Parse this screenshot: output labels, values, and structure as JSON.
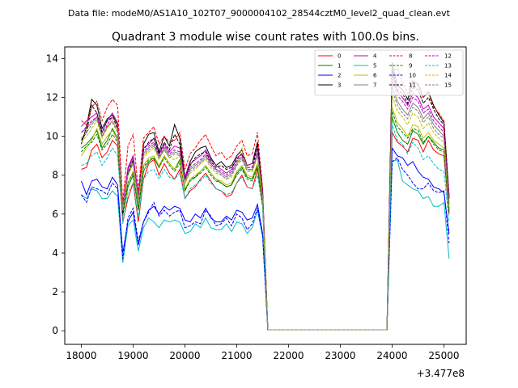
{
  "header": {
    "datafile": "Data file: modeM0/AS1A10_102T07_9000004102_28544cztM0_level2_quad_clean.evt"
  },
  "chart_data": {
    "type": "line",
    "title": "Quadrant 3 module wise count rates with 100.0s bins.",
    "xlabel": "",
    "ylabel": "",
    "x_offset_label": "+3.477e8",
    "xlim": [
      17680,
      25430
    ],
    "ylim": [
      -0.7,
      14.6
    ],
    "xticks": [
      18000,
      19000,
      20000,
      21000,
      22000,
      23000,
      24000,
      25000
    ],
    "yticks": [
      0,
      2,
      4,
      6,
      8,
      10,
      12,
      14
    ],
    "legend_position": "top-right",
    "grid": false,
    "x": [
      18000,
      18100,
      18200,
      18300,
      18400,
      18500,
      18600,
      18700,
      18800,
      18900,
      19000,
      19100,
      19200,
      19300,
      19400,
      19500,
      19600,
      19700,
      19800,
      19900,
      20000,
      20100,
      20200,
      20300,
      20400,
      20500,
      20600,
      20700,
      20800,
      20900,
      21000,
      21100,
      21200,
      21300,
      21400,
      21500,
      21600,
      23800,
      23900,
      24000,
      24100,
      24200,
      24300,
      24400,
      24500,
      24600,
      24700,
      24800,
      24900,
      25000,
      25100
    ],
    "series": [
      {
        "name": "0",
        "color": "#ff0000",
        "dash": "solid",
        "values": [
          8.3,
          8.4,
          9.3,
          9.6,
          8.9,
          9.2,
          9.8,
          9.5,
          5.6,
          6.8,
          7.6,
          5.6,
          7.8,
          8.6,
          8.8,
          8.0,
          8.6,
          8.1,
          7.8,
          8.3,
          6.8,
          7.2,
          7.4,
          7.8,
          8.1,
          7.7,
          7.3,
          7.2,
          6.9,
          7.0,
          7.6,
          8.0,
          7.4,
          7.3,
          8.3,
          6.5,
          0.05,
          0.05,
          0.05,
          10.2,
          9.7,
          9.5,
          9.2,
          9.9,
          9.8,
          9.2,
          9.8,
          9.3,
          9.1,
          9.0,
          6.0
        ]
      },
      {
        "name": "1",
        "color": "#008000",
        "dash": "solid",
        "values": [
          9.4,
          9.6,
          9.9,
          10.3,
          9.4,
          9.8,
          10.4,
          9.9,
          6.0,
          7.4,
          8.0,
          6.2,
          8.2,
          8.7,
          8.9,
          8.4,
          9.0,
          8.6,
          8.3,
          8.8,
          7.2,
          7.8,
          7.9,
          8.2,
          8.5,
          8.1,
          7.8,
          7.6,
          7.4,
          7.5,
          8.1,
          8.4,
          7.9,
          7.8,
          8.5,
          6.7,
          0.05,
          0.05,
          0.05,
          11.0,
          10.2,
          9.8,
          9.6,
          10.3,
          10.1,
          9.6,
          10.0,
          9.7,
          9.4,
          9.3,
          6.2
        ]
      },
      {
        "name": "2",
        "color": "#0000ff",
        "dash": "solid",
        "values": [
          7.7,
          7.0,
          7.7,
          7.8,
          7.4,
          7.3,
          7.9,
          7.5,
          4.0,
          5.6,
          6.1,
          4.4,
          5.6,
          6.2,
          6.4,
          6.0,
          6.4,
          6.2,
          6.4,
          6.3,
          5.7,
          5.6,
          6.0,
          5.8,
          6.3,
          5.8,
          5.6,
          5.6,
          5.9,
          5.7,
          6.2,
          6.1,
          5.7,
          5.8,
          6.5,
          5.0,
          0.05,
          0.05,
          0.05,
          9.4,
          9.0,
          8.9,
          8.5,
          8.7,
          8.2,
          7.9,
          7.8,
          7.4,
          7.3,
          7.1,
          5.0
        ]
      },
      {
        "name": "3",
        "color": "#000000",
        "dash": "solid",
        "values": [
          9.6,
          10.5,
          11.9,
          11.6,
          10.4,
          10.9,
          11.1,
          10.6,
          6.2,
          8.3,
          9.0,
          6.8,
          9.6,
          10.1,
          10.2,
          9.2,
          10.0,
          9.5,
          10.6,
          9.9,
          7.9,
          8.7,
          9.2,
          9.4,
          9.5,
          8.9,
          8.5,
          8.7,
          8.4,
          8.5,
          9.0,
          9.3,
          8.5,
          8.6,
          9.7,
          7.2,
          0.05,
          0.05,
          0.05,
          13.8,
          12.6,
          12.4,
          11.9,
          12.8,
          12.7,
          12.0,
          12.3,
          11.6,
          11.1,
          10.7,
          6.9
        ]
      },
      {
        "name": "4",
        "color": "#bf00bf",
        "dash": "solid",
        "values": [
          10.5,
          10.8,
          11.0,
          11.2,
          10.2,
          10.8,
          11.2,
          10.7,
          6.4,
          8.4,
          9.0,
          7.0,
          9.4,
          9.6,
          9.9,
          9.1,
          9.6,
          9.2,
          9.5,
          9.4,
          7.9,
          8.6,
          8.8,
          9.0,
          9.3,
          8.8,
          8.5,
          8.3,
          8.1,
          8.3,
          8.9,
          9.1,
          8.5,
          8.6,
          9.4,
          7.1,
          0.05,
          0.05,
          0.05,
          13.3,
          12.3,
          12.0,
          11.6,
          12.2,
          12.0,
          11.4,
          11.6,
          11.0,
          10.7,
          10.4,
          6.8
        ]
      },
      {
        "name": "5",
        "color": "#00bfbf",
        "dash": "solid",
        "values": [
          7.0,
          6.8,
          7.3,
          7.2,
          6.8,
          6.8,
          7.2,
          6.9,
          3.5,
          5.4,
          5.7,
          4.1,
          5.3,
          5.8,
          5.6,
          5.3,
          5.7,
          5.6,
          5.7,
          5.6,
          5.0,
          5.1,
          5.5,
          5.3,
          5.8,
          5.3,
          5.2,
          5.2,
          5.5,
          5.1,
          5.6,
          5.5,
          5.0,
          5.3,
          6.2,
          4.8,
          0.05,
          0.05,
          0.05,
          8.7,
          8.8,
          7.7,
          7.5,
          7.3,
          7.2,
          6.8,
          6.9,
          6.4,
          6.4,
          6.6,
          3.7
        ]
      },
      {
        "name": "6",
        "color": "#bfbf00",
        "dash": "solid",
        "values": [
          9.0,
          9.4,
          9.8,
          10.4,
          9.6,
          10.0,
          10.3,
          9.8,
          6.1,
          7.6,
          8.2,
          6.4,
          8.5,
          8.9,
          9.0,
          8.5,
          9.0,
          8.6,
          8.3,
          8.7,
          7.3,
          7.8,
          8.0,
          8.2,
          8.5,
          8.1,
          7.8,
          7.7,
          7.5,
          7.6,
          8.2,
          8.5,
          8.0,
          7.9,
          8.6,
          6.8,
          0.05,
          0.05,
          0.05,
          11.5,
          10.7,
          10.4,
          10.0,
          10.6,
          10.5,
          9.9,
          10.2,
          9.8,
          9.6,
          9.4,
          6.3
        ]
      },
      {
        "name": "7",
        "color": "#808080",
        "dash": "solid",
        "values": [
          10.2,
          10.4,
          10.7,
          11.0,
          10.0,
          10.5,
          10.8,
          10.3,
          6.3,
          8.1,
          8.7,
          6.8,
          9.1,
          9.4,
          9.6,
          8.9,
          9.4,
          9.0,
          9.2,
          9.1,
          7.7,
          8.3,
          8.5,
          8.7,
          9.0,
          8.6,
          8.3,
          8.1,
          7.9,
          8.1,
          8.6,
          8.9,
          8.3,
          8.3,
          9.1,
          7.0,
          0.05,
          0.05,
          0.05,
          12.6,
          11.8,
          11.4,
          11.1,
          11.7,
          11.5,
          10.9,
          11.2,
          10.6,
          10.3,
          10.0,
          6.6
        ]
      },
      {
        "name": "8",
        "color": "#ff0000",
        "dash": "dashed",
        "values": [
          10.8,
          10.6,
          11.5,
          11.8,
          10.8,
          11.5,
          11.9,
          11.6,
          6.6,
          9.5,
          10.1,
          7.2,
          9.9,
          10.2,
          10.5,
          9.6,
          10.0,
          9.7,
          9.8,
          10.2,
          8.3,
          9.1,
          9.4,
          9.8,
          10.1,
          9.5,
          9.0,
          9.2,
          8.8,
          9.0,
          9.5,
          9.8,
          9.0,
          9.1,
          10.2,
          7.3,
          0.05,
          0.05,
          0.05,
          13.3,
          13.5,
          12.8,
          12.2,
          12.9,
          12.6,
          12.0,
          12.2,
          11.5,
          11.2,
          10.8,
          7.0
        ]
      },
      {
        "name": "9",
        "color": "#008000",
        "dash": "dashed",
        "values": [
          9.2,
          9.5,
          9.7,
          10.1,
          9.3,
          9.6,
          10.1,
          9.7,
          5.9,
          7.6,
          8.1,
          6.3,
          8.4,
          8.8,
          8.9,
          8.4,
          8.9,
          8.5,
          8.2,
          8.6,
          7.2,
          7.7,
          7.9,
          8.1,
          8.4,
          8.0,
          7.7,
          7.6,
          7.4,
          7.5,
          8.0,
          8.3,
          7.8,
          7.7,
          8.4,
          6.6,
          0.05,
          0.05,
          0.05,
          11.3,
          10.5,
          10.2,
          9.9,
          10.4,
          10.3,
          9.7,
          10.0,
          9.6,
          9.3,
          9.2,
          6.1
        ]
      },
      {
        "name": "10",
        "color": "#0000ff",
        "dash": "dashed",
        "values": [
          7.0,
          6.6,
          7.4,
          7.3,
          7.2,
          7.0,
          7.6,
          7.3,
          3.7,
          5.8,
          6.3,
          4.6,
          5.6,
          6.1,
          6.6,
          5.9,
          6.2,
          5.9,
          6.1,
          6.2,
          5.3,
          5.4,
          5.6,
          5.5,
          6.2,
          5.9,
          5.4,
          5.5,
          5.8,
          5.4,
          6.0,
          5.8,
          5.2,
          5.5,
          6.3,
          4.9,
          0.05,
          0.05,
          0.05,
          8.7,
          8.9,
          8.3,
          8.0,
          7.6,
          7.3,
          7.3,
          7.6,
          7.2,
          7.1,
          7.2,
          4.5
        ]
      },
      {
        "name": "11",
        "color": "#000000",
        "dash": "dashed",
        "values": [
          9.8,
          10.2,
          11.6,
          11.2,
          10.2,
          10.8,
          11.0,
          10.4,
          6.0,
          8.1,
          8.8,
          6.7,
          9.3,
          9.7,
          9.9,
          9.1,
          9.7,
          9.3,
          10.1,
          9.6,
          7.8,
          8.5,
          8.9,
          9.1,
          9.2,
          8.7,
          8.4,
          8.5,
          8.3,
          8.4,
          8.8,
          9.1,
          8.4,
          8.4,
          9.5,
          7.1,
          0.05,
          0.05,
          0.05,
          13.5,
          12.4,
          12.2,
          11.7,
          12.5,
          12.4,
          11.7,
          12.0,
          11.4,
          10.9,
          10.6,
          6.8
        ]
      },
      {
        "name": "12",
        "color": "#bf00bf",
        "dash": "dashed",
        "values": [
          10.2,
          10.5,
          10.8,
          11.0,
          10.0,
          10.6,
          11.0,
          10.5,
          6.3,
          8.3,
          8.9,
          6.9,
          9.2,
          9.5,
          9.7,
          9.0,
          9.5,
          9.1,
          9.3,
          9.2,
          7.8,
          8.4,
          8.6,
          8.8,
          9.1,
          8.6,
          8.3,
          8.2,
          8.0,
          8.2,
          8.7,
          9.0,
          8.4,
          8.4,
          9.2,
          7.0,
          0.05,
          0.05,
          0.05,
          13.0,
          12.1,
          11.8,
          11.4,
          12.0,
          11.8,
          11.2,
          11.4,
          10.8,
          10.5,
          10.2,
          6.7
        ]
      },
      {
        "name": "13",
        "color": "#00bfbf",
        "dash": "dashed",
        "values": [
          8.5,
          8.6,
          9.0,
          9.2,
          8.5,
          8.9,
          9.4,
          9.0,
          5.5,
          7.1,
          7.6,
          5.8,
          7.8,
          8.2,
          8.3,
          7.8,
          8.3,
          7.9,
          7.8,
          8.1,
          6.8,
          7.3,
          7.5,
          7.7,
          8.0,
          7.6,
          7.3,
          7.2,
          7.0,
          7.1,
          7.6,
          7.9,
          7.4,
          7.3,
          8.0,
          6.3,
          0.05,
          0.05,
          0.05,
          10.6,
          9.8,
          9.6,
          9.1,
          9.7,
          9.4,
          8.8,
          9.0,
          8.6,
          8.3,
          8.2,
          5.6
        ]
      },
      {
        "name": "14",
        "color": "#bfbf00",
        "dash": "dashed",
        "values": [
          9.7,
          10.0,
          10.4,
          10.8,
          9.9,
          10.4,
          10.8,
          10.3,
          6.2,
          8.0,
          8.6,
          6.7,
          8.9,
          9.2,
          9.4,
          8.8,
          9.3,
          8.9,
          8.8,
          9.0,
          7.6,
          8.1,
          8.3,
          8.6,
          8.8,
          8.4,
          8.1,
          8.0,
          7.8,
          7.9,
          8.5,
          9.4,
          8.3,
          8.2,
          9.0,
          6.9,
          0.05,
          0.05,
          0.05,
          12.1,
          11.3,
          11.0,
          10.6,
          11.2,
          11.0,
          10.4,
          10.7,
          10.2,
          9.9,
          9.7,
          6.5
        ]
      },
      {
        "name": "15",
        "color": "#808080",
        "dash": "dashed",
        "values": [
          9.9,
          10.2,
          10.6,
          10.9,
          10.0,
          10.5,
          10.7,
          10.2,
          6.2,
          8.0,
          8.6,
          6.7,
          9.0,
          9.3,
          9.5,
          8.9,
          9.3,
          8.9,
          9.1,
          9.0,
          7.6,
          8.2,
          8.4,
          8.6,
          8.9,
          8.5,
          8.2,
          8.0,
          7.8,
          8.0,
          8.5,
          8.8,
          8.2,
          8.2,
          9.0,
          6.9,
          0.05,
          0.05,
          0.05,
          12.4,
          11.6,
          11.2,
          10.9,
          11.5,
          11.3,
          10.7,
          11.0,
          10.4,
          10.1,
          9.9,
          6.5
        ]
      }
    ]
  }
}
